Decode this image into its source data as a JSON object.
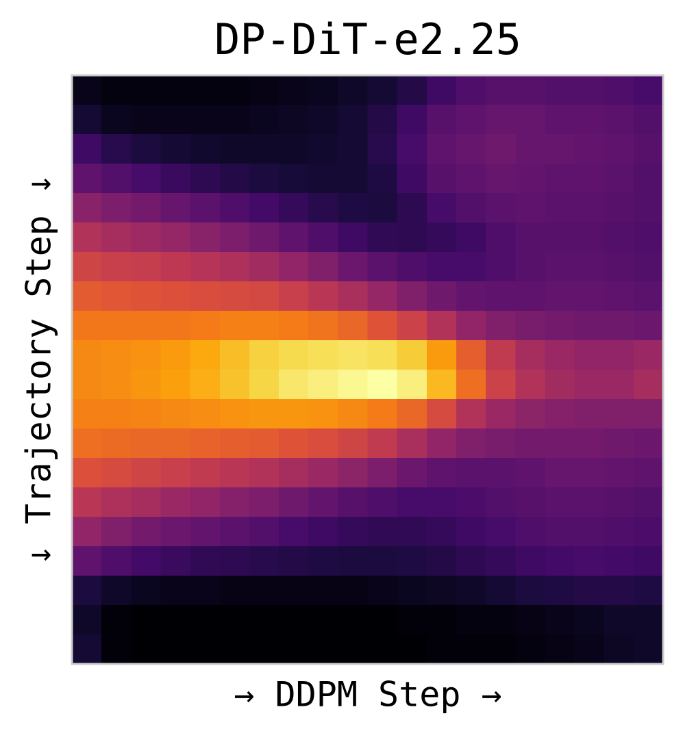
{
  "chart_data": {
    "type": "heatmap",
    "title": "DP-DiT-e2.25",
    "x_label": "→ DDPM Step →",
    "y_label": "↓ Trajectory Step ↓",
    "colormap": "inferno",
    "values": [
      [
        0.05,
        0.03,
        0.03,
        0.03,
        0.03,
        0.03,
        0.04,
        0.05,
        0.06,
        0.08,
        0.1,
        0.14,
        0.2,
        0.24,
        0.26,
        0.26,
        0.25,
        0.25,
        0.24,
        0.22
      ],
      [
        0.1,
        0.06,
        0.05,
        0.05,
        0.05,
        0.05,
        0.06,
        0.07,
        0.08,
        0.1,
        0.14,
        0.2,
        0.26,
        0.28,
        0.3,
        0.3,
        0.28,
        0.28,
        0.27,
        0.25
      ],
      [
        0.2,
        0.15,
        0.12,
        0.1,
        0.09,
        0.08,
        0.08,
        0.08,
        0.09,
        0.1,
        0.15,
        0.22,
        0.28,
        0.3,
        0.32,
        0.3,
        0.3,
        0.29,
        0.28,
        0.26
      ],
      [
        0.28,
        0.25,
        0.22,
        0.19,
        0.16,
        0.14,
        0.12,
        0.11,
        0.1,
        0.1,
        0.13,
        0.2,
        0.26,
        0.28,
        0.3,
        0.29,
        0.28,
        0.28,
        0.27,
        0.25
      ],
      [
        0.38,
        0.35,
        0.33,
        0.3,
        0.27,
        0.24,
        0.21,
        0.18,
        0.15,
        0.13,
        0.12,
        0.16,
        0.22,
        0.25,
        0.27,
        0.28,
        0.27,
        0.27,
        0.26,
        0.25
      ],
      [
        0.48,
        0.45,
        0.43,
        0.41,
        0.38,
        0.35,
        0.32,
        0.28,
        0.24,
        0.2,
        0.17,
        0.16,
        0.18,
        0.2,
        0.24,
        0.26,
        0.26,
        0.26,
        0.25,
        0.24
      ],
      [
        0.56,
        0.54,
        0.53,
        0.51,
        0.49,
        0.47,
        0.44,
        0.4,
        0.36,
        0.31,
        0.27,
        0.24,
        0.22,
        0.22,
        0.24,
        0.26,
        0.27,
        0.27,
        0.26,
        0.25
      ],
      [
        0.63,
        0.62,
        0.61,
        0.6,
        0.59,
        0.58,
        0.57,
        0.54,
        0.5,
        0.46,
        0.41,
        0.36,
        0.32,
        0.29,
        0.28,
        0.28,
        0.29,
        0.29,
        0.28,
        0.27
      ],
      [
        0.7,
        0.7,
        0.7,
        0.7,
        0.71,
        0.72,
        0.72,
        0.71,
        0.69,
        0.66,
        0.61,
        0.55,
        0.48,
        0.4,
        0.36,
        0.34,
        0.33,
        0.32,
        0.32,
        0.31
      ],
      [
        0.74,
        0.75,
        0.76,
        0.78,
        0.81,
        0.85,
        0.89,
        0.91,
        0.92,
        0.93,
        0.92,
        0.88,
        0.78,
        0.64,
        0.52,
        0.45,
        0.42,
        0.4,
        0.4,
        0.42
      ],
      [
        0.74,
        0.75,
        0.77,
        0.79,
        0.82,
        0.86,
        0.9,
        0.94,
        0.96,
        0.98,
        1.0,
        0.96,
        0.84,
        0.68,
        0.55,
        0.48,
        0.44,
        0.42,
        0.42,
        0.45
      ],
      [
        0.72,
        0.72,
        0.73,
        0.74,
        0.75,
        0.76,
        0.77,
        0.77,
        0.76,
        0.74,
        0.71,
        0.66,
        0.58,
        0.48,
        0.42,
        0.39,
        0.37,
        0.36,
        0.36,
        0.36
      ],
      [
        0.68,
        0.67,
        0.66,
        0.66,
        0.65,
        0.64,
        0.63,
        0.61,
        0.59,
        0.56,
        0.52,
        0.46,
        0.4,
        0.36,
        0.34,
        0.33,
        0.33,
        0.33,
        0.32,
        0.31
      ],
      [
        0.6,
        0.58,
        0.56,
        0.54,
        0.52,
        0.5,
        0.48,
        0.45,
        0.42,
        0.39,
        0.35,
        0.31,
        0.28,
        0.27,
        0.27,
        0.28,
        0.3,
        0.3,
        0.29,
        0.28
      ],
      [
        0.5,
        0.47,
        0.45,
        0.42,
        0.4,
        0.37,
        0.35,
        0.32,
        0.29,
        0.26,
        0.24,
        0.22,
        0.22,
        0.23,
        0.25,
        0.26,
        0.27,
        0.27,
        0.26,
        0.25
      ],
      [
        0.4,
        0.36,
        0.33,
        0.31,
        0.29,
        0.27,
        0.25,
        0.22,
        0.2,
        0.18,
        0.17,
        0.17,
        0.18,
        0.2,
        0.22,
        0.24,
        0.25,
        0.25,
        0.24,
        0.23
      ],
      [
        0.28,
        0.24,
        0.21,
        0.19,
        0.17,
        0.16,
        0.15,
        0.14,
        0.13,
        0.12,
        0.12,
        0.13,
        0.14,
        0.16,
        0.18,
        0.2,
        0.21,
        0.22,
        0.21,
        0.2
      ],
      [
        0.12,
        0.08,
        0.06,
        0.05,
        0.05,
        0.04,
        0.04,
        0.04,
        0.04,
        0.04,
        0.05,
        0.06,
        0.07,
        0.08,
        0.1,
        0.12,
        0.13,
        0.14,
        0.14,
        0.13
      ],
      [
        0.08,
        0.02,
        0.01,
        0.01,
        0.01,
        0.01,
        0.01,
        0.01,
        0.01,
        0.01,
        0.01,
        0.02,
        0.02,
        0.03,
        0.03,
        0.04,
        0.05,
        0.06,
        0.08,
        0.08
      ],
      [
        0.1,
        0.02,
        0.01,
        0.01,
        0.01,
        0.01,
        0.01,
        0.01,
        0.01,
        0.01,
        0.01,
        0.01,
        0.02,
        0.02,
        0.02,
        0.03,
        0.04,
        0.05,
        0.07,
        0.08
      ]
    ]
  }
}
